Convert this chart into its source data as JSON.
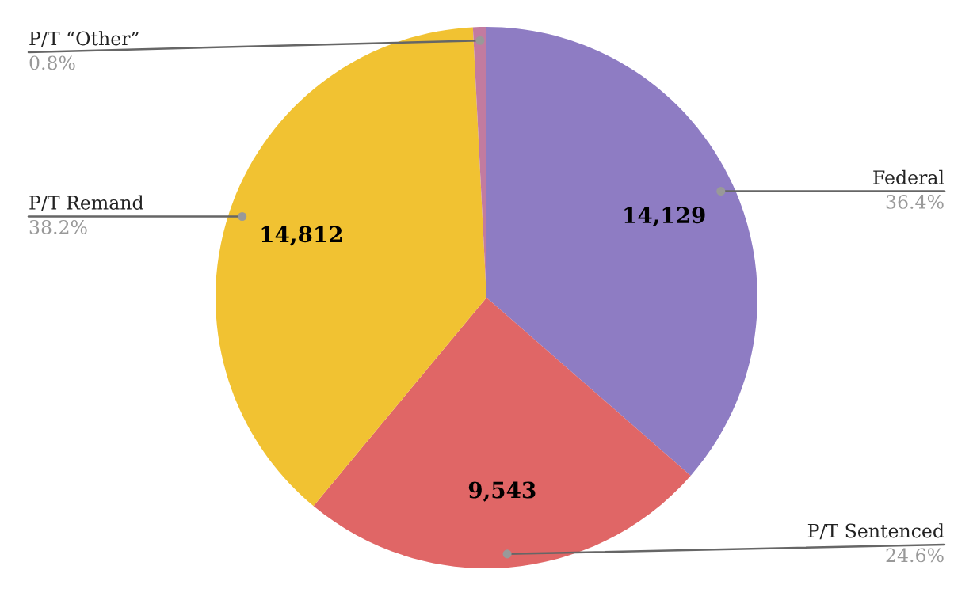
{
  "chart_data": {
    "type": "pie",
    "categories": [
      "Federal",
      "P/T Sentenced",
      "P/T Remand",
      "P/T “Other”"
    ],
    "values": [
      14129,
      9543,
      14812,
      310
    ],
    "colors": [
      "#8e7cc3",
      "#e06666",
      "#f1c232",
      "#c27ba0"
    ],
    "value_labels": [
      "14,129",
      "9,543",
      "14,812",
      null
    ],
    "annotations": [
      "36.4%",
      "24.6%",
      "38.2%",
      "0.8%"
    ]
  }
}
